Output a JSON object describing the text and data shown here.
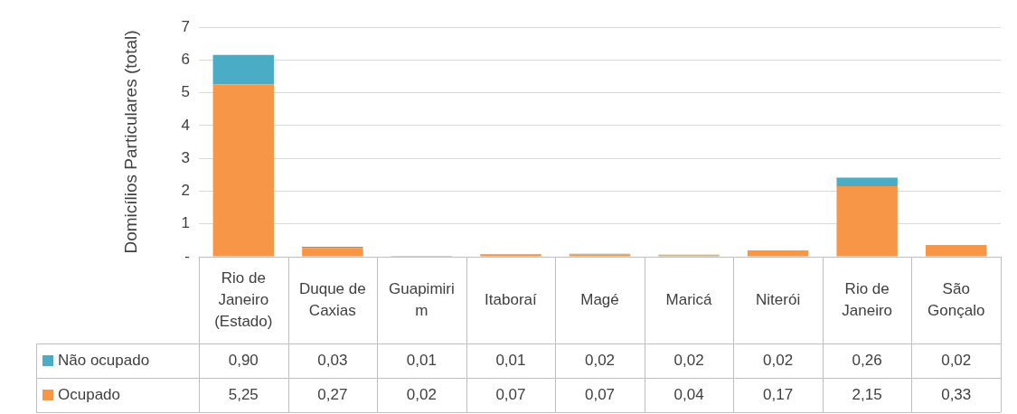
{
  "chart_data": {
    "type": "bar",
    "stacked": true,
    "ylabel": "Domicílios Particulares (total)",
    "categories": [
      "Rio de Janeiro (Estado)",
      "Duque de Caxias",
      "Guapimirim",
      "Itaboraí",
      "Magé",
      "Maricá",
      "Niterói",
      "Rio de Janeiro",
      "São Gonçalo"
    ],
    "series": [
      {
        "name": "Ocupado",
        "color": "#f79646",
        "values": [
          5.25,
          0.27,
          0.02,
          0.07,
          0.07,
          0.04,
          0.17,
          2.15,
          0.33
        ],
        "value_labels": [
          "5,25",
          "0,27",
          "0,02",
          "0,07",
          "0,07",
          "0,04",
          "0,17",
          "2,15",
          "0,33"
        ]
      },
      {
        "name": "Não ocupado",
        "color": "#4bacc6",
        "values": [
          0.9,
          0.03,
          0.01,
          0.01,
          0.02,
          0.02,
          0.02,
          0.26,
          0.02
        ],
        "value_labels": [
          "0,90",
          "0,03",
          "0,01",
          "0,01",
          "0,02",
          "0,02",
          "0,02",
          "0,26",
          "0,02"
        ]
      }
    ],
    "ylim": [
      0,
      7
    ],
    "yticks": [
      {
        "value": 0,
        "label": "-"
      },
      1,
      2,
      3,
      4,
      5,
      6,
      7
    ],
    "grid": "y",
    "legend": "bottom"
  }
}
